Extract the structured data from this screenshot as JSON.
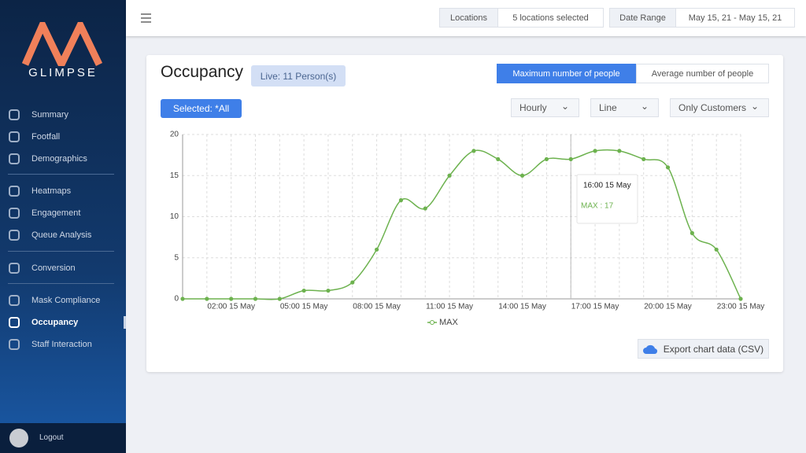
{
  "sidebar": {
    "logo": "GLIMPSE",
    "groups": [
      [
        {
          "label": "Summary"
        },
        {
          "label": "Footfall"
        },
        {
          "label": "Demographics"
        }
      ],
      [
        {
          "label": "Heatmaps"
        },
        {
          "label": "Engagement"
        },
        {
          "label": "Queue Analysis"
        }
      ],
      [
        {
          "label": "Conversion"
        }
      ],
      [
        {
          "label": "Mask Compliance"
        },
        {
          "label": "Occupancy",
          "active": true
        },
        {
          "label": "Staff Interaction"
        }
      ]
    ],
    "logout": "Logout"
  },
  "topbar": {
    "locations_label": "Locations",
    "locations_value": "5 locations selected",
    "date_label": "Date Range",
    "date_value": "May 15, 21 - May 15, 21"
  },
  "card": {
    "title": "Occupancy",
    "live": "Live: 11 Person(s)",
    "toggles": [
      {
        "label": "Maximum number of people",
        "active": true
      },
      {
        "label": "Average number of people",
        "active": false
      }
    ],
    "selected": "Selected: *All",
    "dropdowns": [
      "Hourly",
      "Line",
      "Only Customers"
    ],
    "export": "Export chart data (CSV)"
  },
  "chart_data": {
    "type": "line",
    "categories": [
      null,
      null,
      "02:00 15 May",
      null,
      null,
      "05:00 15 May",
      null,
      null,
      "08:00 15 May",
      null,
      null,
      "11:00 15 May",
      null,
      null,
      "14:00 15 May",
      null,
      null,
      "17:00 15 May",
      null,
      null,
      "20:00 15 May",
      null,
      null,
      "23:00 15 May"
    ],
    "series": [
      {
        "name": "MAX",
        "color": "#6db24f",
        "values": [
          0,
          0,
          0,
          0,
          0,
          1,
          1,
          2,
          6,
          12,
          11,
          15,
          18,
          17,
          15,
          17,
          17,
          18,
          18,
          17,
          16,
          8,
          6,
          0
        ]
      }
    ],
    "ylim": [
      0,
      20
    ],
    "yticks": [
      0,
      5,
      10,
      15,
      20
    ],
    "grid": true,
    "tooltip": {
      "title": "16:00 15 May",
      "text": "MAX : 17"
    }
  }
}
